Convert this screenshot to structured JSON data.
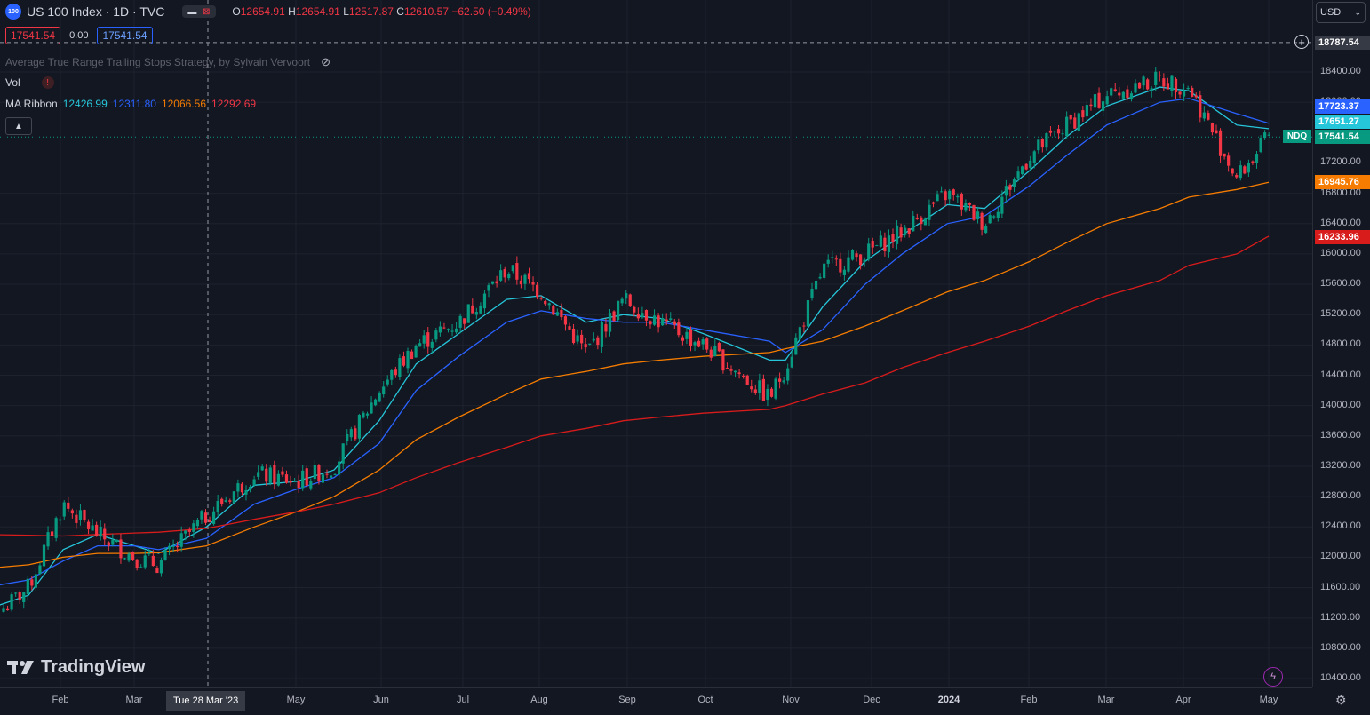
{
  "header": {
    "symbol_icon_text": "100",
    "title": "US 100 Index · 1D · TVC",
    "ohlc": [
      {
        "label": "O",
        "value": "12654.91"
      },
      {
        "label": "H",
        "value": "12654.91"
      },
      {
        "label": "L",
        "value": "12517.87"
      },
      {
        "label": "C",
        "value": "12610.57"
      }
    ],
    "change": "−62.50 (−0.49%)",
    "order_sell": "17541.54",
    "order_spread": "0.00",
    "order_buy": "17541.54"
  },
  "indicators": {
    "strategy": "Average True Range Trailing Stops Strategy, by Sylvain Vervoort",
    "vol": "Vol",
    "ma_name": "MA Ribbon",
    "ma_values": [
      "12426.99",
      "12311.80",
      "12066.56",
      "12292.69"
    ],
    "collapse_icon": "chevron-up-icon"
  },
  "price_scale": {
    "currency": "USD",
    "labels": [
      "18400.00",
      "18000.00",
      "17200.00",
      "16800.00",
      "16400.00",
      "16000.00",
      "15600.00",
      "15200.00",
      "14800.00",
      "14400.00",
      "14000.00",
      "13600.00",
      "13200.00",
      "12800.00",
      "12400.00",
      "12000.00",
      "11600.00",
      "11200.00",
      "10800.00",
      "10400.00"
    ],
    "crosshair_price": "18787.54",
    "tags": [
      {
        "value": "17723.37",
        "color": "#2962ff"
      },
      {
        "value": "17651.27",
        "color": "#26c6da"
      },
      {
        "value": "17541.54",
        "color": "#089981"
      },
      {
        "value": "16945.76",
        "color": "#f57c00"
      },
      {
        "value": "16233.96",
        "color": "#d81b1b"
      }
    ],
    "ndq_label": "NDQ"
  },
  "time_scale": {
    "labels": [
      "Feb",
      "Mar",
      "May",
      "Jun",
      "Jul",
      "Aug",
      "Sep",
      "Oct",
      "Nov",
      "Dec",
      "2024",
      "Feb",
      "Mar",
      "Apr",
      "May"
    ],
    "crosshair_time": "Tue 28 Mar '23"
  },
  "branding": {
    "logo_text": "TradingView"
  },
  "colors": {
    "up": "#089981",
    "down": "#f23645",
    "ma20": "#26c6da",
    "ma50": "#2962ff",
    "ma100": "#f57c00",
    "ma200": "#d81b1b"
  },
  "chart_data": {
    "type": "candlestick",
    "symbol": "US 100 Index",
    "interval": "1D",
    "x": [
      "2023-01-03",
      "2023-01-20",
      "2023-02-02",
      "2023-02-15",
      "2023-03-01",
      "2023-03-10",
      "2023-03-28",
      "2023-04-15",
      "2023-05-01",
      "2023-05-15",
      "2023-06-01",
      "2023-06-15",
      "2023-07-01",
      "2023-07-19",
      "2023-08-01",
      "2023-08-18",
      "2023-09-01",
      "2023-09-15",
      "2023-10-01",
      "2023-10-26",
      "2023-11-01",
      "2023-11-15",
      "2023-12-01",
      "2023-12-15",
      "2024-01-01",
      "2024-01-15",
      "2024-02-01",
      "2024-02-15",
      "2024-03-01",
      "2024-03-21",
      "2024-04-01",
      "2024-04-19",
      "2024-05-01"
    ],
    "close": [
      11100,
      11600,
      12700,
      12300,
      12000,
      11900,
      12550,
      13100,
      13000,
      13200,
      14200,
      14800,
      15100,
      15800,
      15500,
      14700,
      15400,
      15100,
      14800,
      14100,
      14500,
      15800,
      16000,
      16300,
      16800,
      16400,
      17300,
      17700,
      18100,
      18300,
      18200,
      17000,
      17541.54
    ],
    "ma_series": [
      {
        "name": "MA Ribbon 20",
        "values": [
          11300,
          11500,
          12100,
          12300,
          12150,
          12050,
          12400,
          12950,
          13000,
          13150,
          13800,
          14550,
          14950,
          15400,
          15450,
          15100,
          15200,
          15150,
          14950,
          14600,
          14600,
          15300,
          15900,
          16250,
          16650,
          16600,
          17100,
          17550,
          17950,
          18200,
          18150,
          17700,
          17651.27
        ]
      },
      {
        "name": "MA Ribbon 50",
        "values": [
          11600,
          11700,
          11950,
          12150,
          12150,
          12100,
          12250,
          12700,
          12900,
          13050,
          13500,
          14200,
          14650,
          15100,
          15250,
          15150,
          15100,
          15100,
          15000,
          14850,
          14700,
          15000,
          15600,
          16000,
          16400,
          16500,
          16900,
          17300,
          17700,
          18000,
          18050,
          17850,
          17723.37
        ]
      },
      {
        "name": "MA Ribbon 100",
        "values": [
          11850,
          11900,
          12000,
          12050,
          12050,
          12060,
          12150,
          12400,
          12600,
          12800,
          13150,
          13550,
          13850,
          14150,
          14350,
          14450,
          14550,
          14600,
          14650,
          14700,
          14750,
          14850,
          15050,
          15250,
          15500,
          15650,
          15900,
          16150,
          16400,
          16600,
          16750,
          16850,
          16945.76
        ]
      },
      {
        "name": "MA Ribbon 200",
        "values": [
          12300,
          12290,
          12280,
          12300,
          12320,
          12330,
          12380,
          12500,
          12600,
          12700,
          12850,
          13050,
          13250,
          13450,
          13600,
          13700,
          13800,
          13850,
          13900,
          13950,
          14000,
          14150,
          14300,
          14500,
          14700,
          14850,
          15050,
          15250,
          15450,
          15650,
          15850,
          16000,
          16233.96
        ]
      }
    ],
    "ylim": [
      10400,
      18787.54
    ]
  }
}
